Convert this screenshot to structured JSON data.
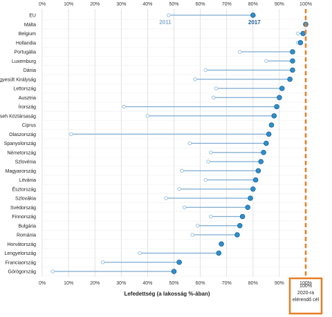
{
  "colors": {
    "accent": "#e67e22",
    "dot_2017": "#2e8fc9",
    "dot_2011": "#9ec4e3",
    "connector": "#7ea9d1",
    "grid": "#d9d9d9"
  },
  "chart_data": {
    "type": "dot-range",
    "xlabel": "Lefedettség (a lakosság %-ában)",
    "xlim": [
      0,
      100
    ],
    "x_ticks": [
      "0%",
      "10%",
      "20%",
      "30%",
      "40%",
      "50%",
      "60%",
      "70%",
      "80%",
      "90%",
      "100%"
    ],
    "legend": {
      "old": "2011",
      "new": "2017"
    },
    "target": {
      "value": 100,
      "label_lines": [
        "100%",
        "2020-ra",
        "elérendő cél"
      ]
    },
    "categories": [
      "EU",
      "Málta",
      "Belgium",
      "Hollandia",
      "Portugália",
      "Luxemburg",
      "Dánia",
      "Egyesült Királyság",
      "Lettország",
      "Ausztria",
      "Írország",
      "Cseh Köztársaság",
      "Ciprus",
      "Olaszország",
      "Spanyolország",
      "Németország",
      "Szlovénia",
      "Magyarország",
      "Litvánia",
      "Észtország",
      "Szlovákia",
      "Svédország",
      "Finnország",
      "Bulgária",
      "Románia",
      "Horvátország",
      "Lengyelország",
      "Franciaország",
      "Görögország"
    ],
    "series": [
      {
        "name": "2011",
        "values": [
          48,
          100,
          97,
          97,
          75,
          85,
          62,
          58,
          66,
          65,
          31,
          40,
          null,
          11,
          56,
          64,
          63,
          53,
          62,
          52,
          47,
          54,
          64,
          59,
          57,
          null,
          37,
          23,
          4
        ]
      },
      {
        "name": "2017",
        "values": [
          80,
          100,
          99,
          98,
          95,
          95,
          95,
          94,
          91,
          90,
          89,
          88,
          87,
          86,
          85,
          84,
          83,
          82,
          81,
          80,
          79,
          78,
          76,
          75,
          74,
          68,
          67,
          52,
          50
        ]
      }
    ]
  }
}
